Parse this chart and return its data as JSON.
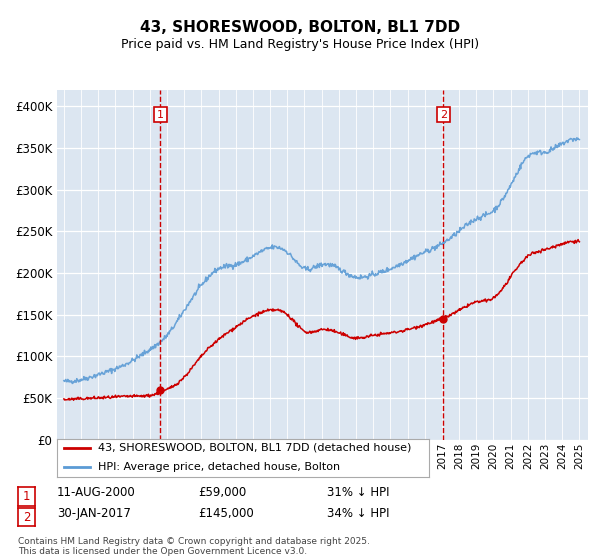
{
  "title": "43, SHORESWOOD, BOLTON, BL1 7DD",
  "subtitle": "Price paid vs. HM Land Registry's House Price Index (HPI)",
  "background_color": "#dce6f1",
  "plot_bg_color": "#dce6f1",
  "ylim": [
    0,
    420000
  ],
  "yticks": [
    0,
    50000,
    100000,
    150000,
    200000,
    250000,
    300000,
    350000,
    400000
  ],
  "ytick_labels": [
    "£0",
    "£50K",
    "£100K",
    "£150K",
    "£200K",
    "£250K",
    "£300K",
    "£350K",
    "£400K"
  ],
  "sale1_x": 2000.62,
  "sale1_y": 59000,
  "sale2_x": 2017.08,
  "sale2_y": 145000,
  "legend_line1": "43, SHORESWOOD, BOLTON, BL1 7DD (detached house)",
  "legend_line2": "HPI: Average price, detached house, Bolton",
  "footer3": "Contains HM Land Registry data © Crown copyright and database right 2025.\nThis data is licensed under the Open Government Licence v3.0.",
  "line_red_color": "#cc0000",
  "line_blue_color": "#5b9bd5",
  "xlim_left": 1994.6,
  "xlim_right": 2025.5
}
